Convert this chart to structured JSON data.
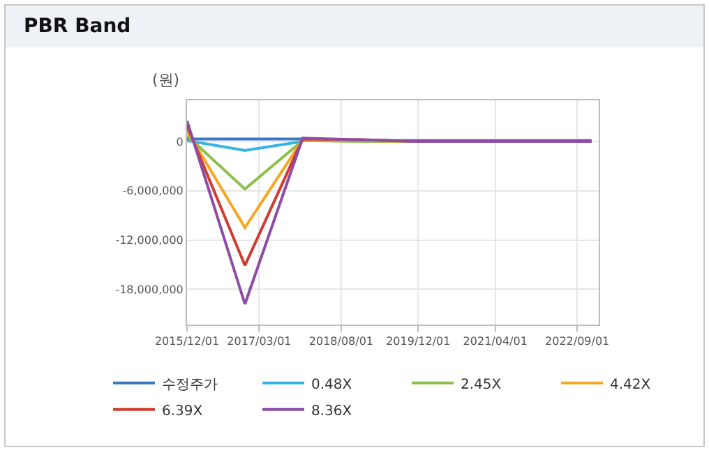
{
  "chart_data": {
    "type": "line",
    "title": "PBR Band",
    "ylabel": "(원)",
    "x": [
      "2015-12-01",
      "2016-12-01",
      "2017-12-01",
      "2018-12-01",
      "2019-12-01",
      "2020-12-01",
      "2021-12-01",
      "2022-12-01"
    ],
    "series": [
      {
        "name": "수정주가",
        "color": "#3a78c3",
        "values": [
          300000,
          300000,
          300000,
          100000,
          100000,
          100000,
          100000,
          100000
        ]
      },
      {
        "name": "0.48X",
        "color": "#33b5e5",
        "values": [
          100000,
          -1100000,
          0,
          null,
          null,
          null,
          null,
          null
        ]
      },
      {
        "name": "2.45X",
        "color": "#8cbf4b",
        "values": [
          700000,
          -5800000,
          100000,
          0,
          0,
          0,
          null,
          null
        ]
      },
      {
        "name": "4.42X",
        "color": "#f5a623",
        "values": [
          1300000,
          -10500000,
          200000,
          100000,
          0,
          null,
          null,
          null
        ]
      },
      {
        "name": "6.39X",
        "color": "#d03c31",
        "values": [
          1900000,
          -15100000,
          300000,
          200000,
          0,
          null,
          null,
          null
        ]
      },
      {
        "name": "8.36X",
        "color": "#8e4ca7",
        "values": [
          2500000,
          -19800000,
          400000,
          200000,
          0,
          0,
          0,
          0
        ]
      }
    ],
    "xlim": [
      "2015-12-01",
      "2023-01-15"
    ],
    "xticks": [
      {
        "value": "2015-12-01",
        "label": "2015/12/01"
      },
      {
        "value": "2017-03-01",
        "label": "2017/03/01"
      },
      {
        "value": "2018-08-01",
        "label": "2018/08/01"
      },
      {
        "value": "2019-12-01",
        "label": "2019/12/01"
      },
      {
        "value": "2021-04-01",
        "label": "2021/04/01"
      },
      {
        "value": "2022-09-01",
        "label": "2022/09/01"
      }
    ],
    "ylim": [
      -22300000,
      5000000
    ],
    "yticks": [
      {
        "value": 0,
        "label": "0"
      },
      {
        "value": -6000000,
        "label": "-6,000,000"
      },
      {
        "value": -12000000,
        "label": "-12,000,000"
      },
      {
        "value": -18000000,
        "label": "-18,000,000"
      }
    ],
    "grid": true,
    "legend": "bottom",
    "line_style": "solid",
    "marker": "none"
  }
}
